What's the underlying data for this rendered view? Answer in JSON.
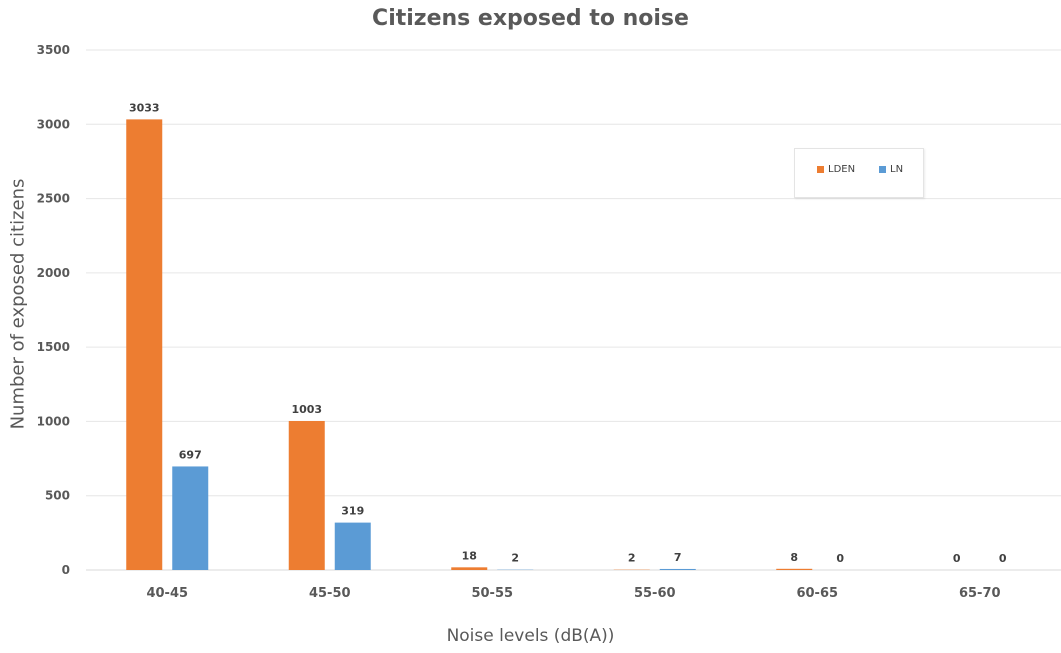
{
  "chart_data": {
    "type": "bar",
    "title": "Citizens exposed to noise",
    "xlabel": "Noise levels (dB(A))",
    "ylabel": "Number of exposed citizens",
    "categories": [
      "40-45",
      "45-50",
      "50-55",
      "55-60",
      "60-65",
      "65-70"
    ],
    "series": [
      {
        "name": "LDEN",
        "color": "#ED7D31",
        "values": [
          3033,
          1003,
          18,
          2,
          8,
          0
        ]
      },
      {
        "name": "LN",
        "color": "#5B9BD5",
        "values": [
          697,
          319,
          2,
          7,
          0,
          0
        ]
      }
    ],
    "ylim": [
      0,
      3500
    ],
    "yticks": [
      0,
      500,
      1000,
      1500,
      2000,
      2500,
      3000,
      3500
    ],
    "grid": true,
    "legend": "top-right"
  }
}
